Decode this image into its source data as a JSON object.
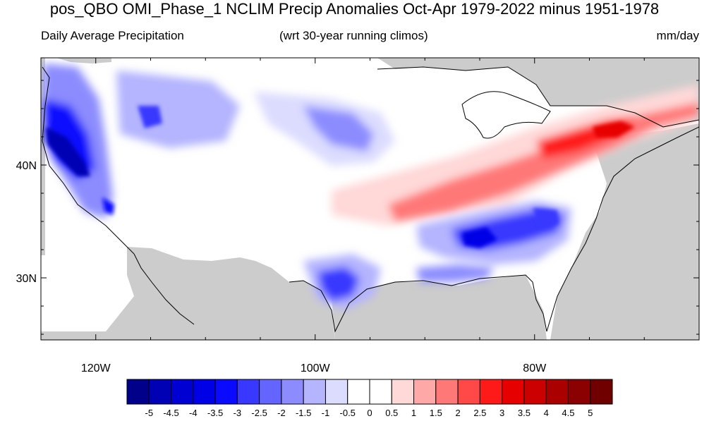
{
  "title": "pos_QBO OMI_Phase_1 NCLIM Precip Anomalies Oct-Apr 1979-2022 minus 1951-1978",
  "left_string": "Daily Average Precipitation",
  "center_string": "(wrt 30-year running climos)",
  "right_string": "mm/day",
  "map": {
    "lat_ticks": [
      {
        "value": 40,
        "label": "40N"
      },
      {
        "value": 30,
        "label": "30N"
      }
    ],
    "lon_ticks": [
      {
        "value": -120,
        "label": "120W"
      },
      {
        "value": -100,
        "label": "100W"
      },
      {
        "value": -80,
        "label": "80W"
      }
    ],
    "lon_range": [
      -125,
      -65
    ],
    "lat_range": [
      24.5,
      49.5
    ],
    "missing_color": "#cccccc",
    "anomaly_regions": [
      {
        "region": "Pacific coast (N. California / Oregon / Washington)",
        "value": -4.5
      },
      {
        "region": "Northern Rockies (Idaho / Montana)",
        "value": -2.5
      },
      {
        "region": "Northern Plains",
        "value": -1.5
      },
      {
        "region": "Central Texas",
        "value": -3
      },
      {
        "region": "Southeast (Alabama / Georgia / Carolinas)",
        "value": -3
      },
      {
        "region": "Ohio Valley to Northeast",
        "value": 2.5
      },
      {
        "region": "Southern Plains to Tennessee Valley",
        "value": 1
      }
    ]
  },
  "colorbar": {
    "labels": [
      "-5",
      "-4.5",
      "-4",
      "-3.5",
      "-3",
      "-2.5",
      "-2",
      "-1.5",
      "-1",
      "-0.5",
      "0",
      "0.5",
      "1",
      "1.5",
      "2",
      "2.5",
      "3",
      "3.5",
      "4",
      "4.5",
      "5"
    ],
    "colors": [
      "#00008b",
      "#0000b4",
      "#0000d2",
      "#0000e6",
      "#0a0aff",
      "#3838ff",
      "#6464ff",
      "#8c8cff",
      "#b4b4ff",
      "#dcdcff",
      "#ffffff",
      "#ffffff",
      "#ffd8d8",
      "#ffa8a8",
      "#ff7878",
      "#ff4848",
      "#ff1a1a",
      "#e60000",
      "#cd0000",
      "#aa0000",
      "#8b0000",
      "#700000"
    ]
  }
}
